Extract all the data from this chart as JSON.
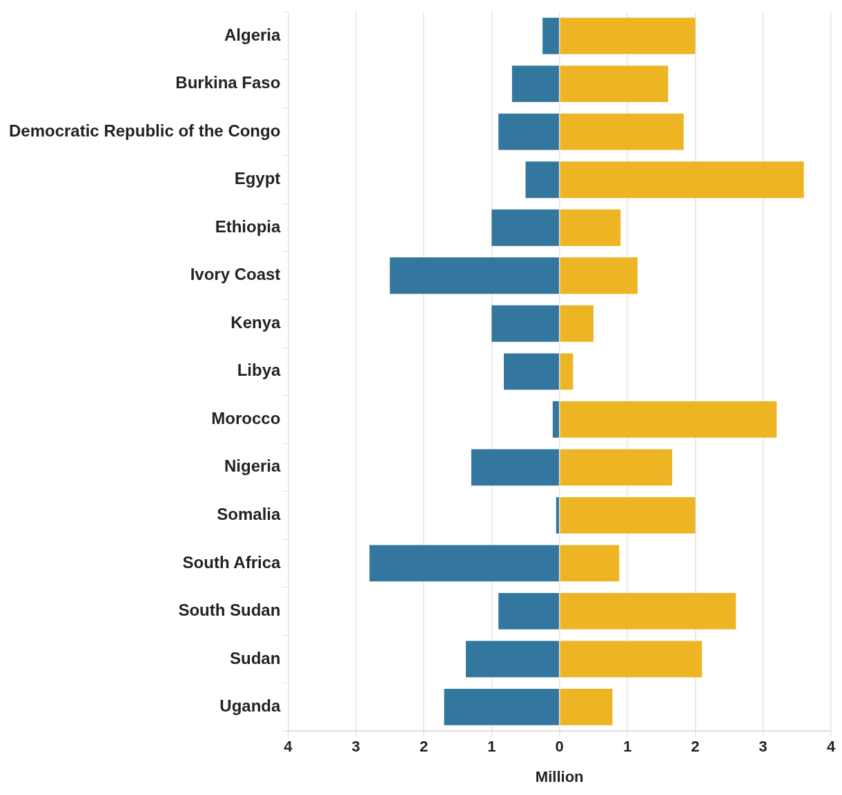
{
  "chart_data": {
    "type": "bar",
    "orientation": "horizontal",
    "stacked": true,
    "xlabel": "Million",
    "categories": [
      "Algeria",
      "Burkina Faso",
      "Democratic Republic of the Congo",
      "Egypt",
      "Ethiopia",
      "Ivory Coast",
      "Kenya",
      "Libya",
      "Morocco",
      "Nigeria",
      "Somalia",
      "South Africa",
      "South Sudan",
      "Sudan",
      "Uganda"
    ],
    "series": [
      {
        "color": "#33779f",
        "values": [
          -0.25,
          -0.7,
          -0.9,
          -0.5,
          -1.0,
          -2.5,
          -1.0,
          -0.82,
          -0.1,
          -1.3,
          -0.05,
          -2.8,
          -0.9,
          -1.38,
          -1.7
        ]
      },
      {
        "color": "#edb424",
        "values": [
          2.0,
          1.6,
          1.83,
          3.6,
          0.9,
          1.15,
          0.5,
          0.2,
          3.2,
          1.66,
          2.0,
          0.88,
          2.6,
          2.1,
          0.78
        ]
      }
    ],
    "xlim": [
      -4,
      4
    ],
    "xticks": [
      {
        "value": -4,
        "label": "4"
      },
      {
        "value": -3,
        "label": "3"
      },
      {
        "value": -2,
        "label": "2"
      },
      {
        "value": -1,
        "label": "1"
      },
      0,
      1,
      2,
      3,
      4
    ],
    "grid": "x",
    "legend": false
  }
}
